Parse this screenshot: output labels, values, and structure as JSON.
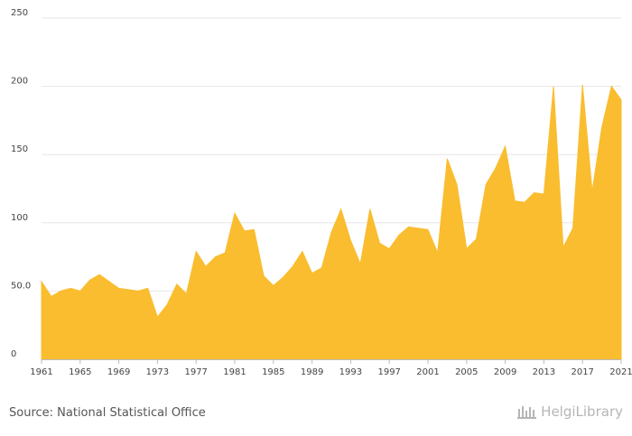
{
  "chart_data": {
    "type": "area",
    "title": "",
    "xlabel": "",
    "ylabel": "",
    "color": "#F9BD2F",
    "ylim": [
      0,
      250
    ],
    "y_ticks": [
      0,
      50,
      100,
      150,
      200,
      250
    ],
    "y_tick_labels": [
      "0",
      "50.0",
      "100",
      "150",
      "200",
      "250"
    ],
    "x_ticks": [
      1961,
      1965,
      1969,
      1973,
      1977,
      1981,
      1985,
      1989,
      1993,
      1997,
      2001,
      2005,
      2009,
      2013,
      2017,
      2021
    ],
    "x": [
      1961,
      1962,
      1963,
      1964,
      1965,
      1966,
      1967,
      1968,
      1969,
      1970,
      1971,
      1972,
      1973,
      1974,
      1975,
      1976,
      1977,
      1978,
      1979,
      1980,
      1981,
      1982,
      1983,
      1984,
      1985,
      1986,
      1987,
      1988,
      1989,
      1990,
      1991,
      1992,
      1993,
      1994,
      1995,
      1996,
      1997,
      1998,
      1999,
      2000,
      2001,
      2002,
      2003,
      2004,
      2005,
      2006,
      2007,
      2008,
      2009,
      2010,
      2011,
      2012,
      2013,
      2014,
      2015,
      2016,
      2017,
      2018,
      2019,
      2020,
      2021
    ],
    "values": [
      57,
      46,
      50,
      52,
      50,
      58,
      62,
      57,
      52,
      51,
      50,
      52,
      31,
      40,
      55,
      48,
      79,
      68,
      75,
      78,
      107,
      94,
      95,
      61,
      54,
      60,
      68,
      79,
      63,
      67,
      93,
      110,
      87,
      70,
      110,
      85,
      81,
      91,
      97,
      96,
      95,
      78,
      147,
      128,
      81,
      88,
      128,
      140,
      156,
      116,
      115,
      122,
      121,
      200,
      82,
      96,
      201,
      123,
      170,
      200,
      190
    ]
  },
  "footer": {
    "source": "Source: National Statistical Office",
    "logo_text": "HelgiLibrary",
    "logo_icon": "helgi-logo-icon"
  }
}
